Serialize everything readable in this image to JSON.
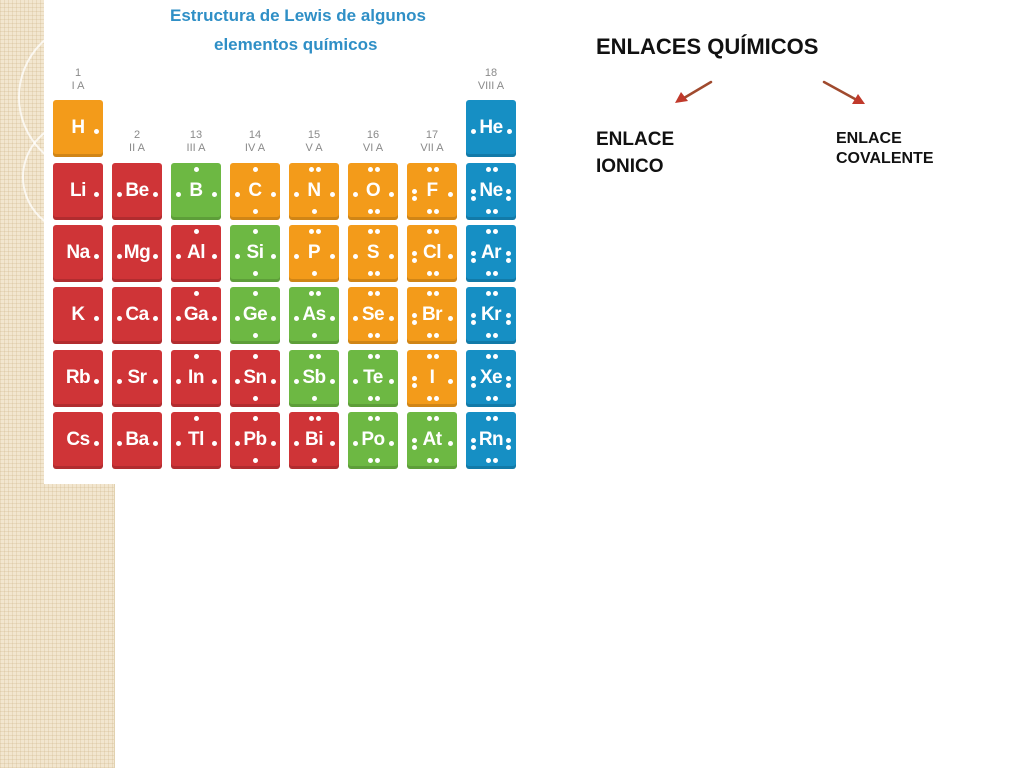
{
  "slide": {
    "title": "ENLACES QUÍMICOS",
    "branch_left": [
      "ENLACE",
      "IONICO"
    ],
    "branch_right": [
      "ENLACE",
      "COVALENTE"
    ],
    "arrow_color": "#c0392b"
  },
  "periodic_table": {
    "title_line_1": "Estructura de Lewis de algunos",
    "title_line_2": "elementos químicos",
    "colors": {
      "red": "#cf3437",
      "orange": "#f39b1a",
      "green": "#6db843",
      "blue": "#168fc4",
      "title": "#2f8fc6"
    },
    "groups": [
      {
        "number": "1",
        "roman": "I A",
        "col": 0
      },
      {
        "number": "2",
        "roman": "II A",
        "col": 1
      },
      {
        "number": "13",
        "roman": "III A",
        "col": 2
      },
      {
        "number": "14",
        "roman": "IV A",
        "col": 3
      },
      {
        "number": "15",
        "roman": "V A",
        "col": 4
      },
      {
        "number": "16",
        "roman": "VI A",
        "col": 5
      },
      {
        "number": "17",
        "roman": "VII A",
        "col": 6
      },
      {
        "number": "18",
        "roman": "VIII A",
        "col": 7
      }
    ],
    "elements": [
      {
        "symbol": "H",
        "col": 0,
        "row": 0,
        "color": "orange",
        "electrons": 1
      },
      {
        "symbol": "He",
        "col": 7,
        "row": 0,
        "color": "blue",
        "electrons": 2
      },
      {
        "symbol": "Li",
        "col": 0,
        "row": 1,
        "color": "red",
        "electrons": 1
      },
      {
        "symbol": "Be",
        "col": 1,
        "row": 1,
        "color": "red",
        "electrons": 2
      },
      {
        "symbol": "B",
        "col": 2,
        "row": 1,
        "color": "green",
        "electrons": 3
      },
      {
        "symbol": "C",
        "col": 3,
        "row": 1,
        "color": "orange",
        "electrons": 4
      },
      {
        "symbol": "N",
        "col": 4,
        "row": 1,
        "color": "orange",
        "electrons": 5
      },
      {
        "symbol": "O",
        "col": 5,
        "row": 1,
        "color": "orange",
        "electrons": 6
      },
      {
        "symbol": "F",
        "col": 6,
        "row": 1,
        "color": "orange",
        "electrons": 7
      },
      {
        "symbol": "Ne",
        "col": 7,
        "row": 1,
        "color": "blue",
        "electrons": 8
      },
      {
        "symbol": "Na",
        "col": 0,
        "row": 2,
        "color": "red",
        "electrons": 1
      },
      {
        "symbol": "Mg",
        "col": 1,
        "row": 2,
        "color": "red",
        "electrons": 2
      },
      {
        "symbol": "Al",
        "col": 2,
        "row": 2,
        "color": "red",
        "electrons": 3
      },
      {
        "symbol": "Si",
        "col": 3,
        "row": 2,
        "color": "green",
        "electrons": 4
      },
      {
        "symbol": "P",
        "col": 4,
        "row": 2,
        "color": "orange",
        "electrons": 5
      },
      {
        "symbol": "S",
        "col": 5,
        "row": 2,
        "color": "orange",
        "electrons": 6
      },
      {
        "symbol": "Cl",
        "col": 6,
        "row": 2,
        "color": "orange",
        "electrons": 7
      },
      {
        "symbol": "Ar",
        "col": 7,
        "row": 2,
        "color": "blue",
        "electrons": 8
      },
      {
        "symbol": "K",
        "col": 0,
        "row": 3,
        "color": "red",
        "electrons": 1
      },
      {
        "symbol": "Ca",
        "col": 1,
        "row": 3,
        "color": "red",
        "electrons": 2
      },
      {
        "symbol": "Ga",
        "col": 2,
        "row": 3,
        "color": "red",
        "electrons": 3
      },
      {
        "symbol": "Ge",
        "col": 3,
        "row": 3,
        "color": "green",
        "electrons": 4
      },
      {
        "symbol": "As",
        "col": 4,
        "row": 3,
        "color": "green",
        "electrons": 5
      },
      {
        "symbol": "Se",
        "col": 5,
        "row": 3,
        "color": "orange",
        "electrons": 6
      },
      {
        "symbol": "Br",
        "col": 6,
        "row": 3,
        "color": "orange",
        "electrons": 7
      },
      {
        "symbol": "Kr",
        "col": 7,
        "row": 3,
        "color": "blue",
        "electrons": 8
      },
      {
        "symbol": "Rb",
        "col": 0,
        "row": 4,
        "color": "red",
        "electrons": 1
      },
      {
        "symbol": "Sr",
        "col": 1,
        "row": 4,
        "color": "red",
        "electrons": 2
      },
      {
        "symbol": "In",
        "col": 2,
        "row": 4,
        "color": "red",
        "electrons": 3
      },
      {
        "symbol": "Sn",
        "col": 3,
        "row": 4,
        "color": "red",
        "electrons": 4
      },
      {
        "symbol": "Sb",
        "col": 4,
        "row": 4,
        "color": "green",
        "electrons": 5
      },
      {
        "symbol": "Te",
        "col": 5,
        "row": 4,
        "color": "green",
        "electrons": 6
      },
      {
        "symbol": "I",
        "col": 6,
        "row": 4,
        "color": "orange",
        "electrons": 7
      },
      {
        "symbol": "Xe",
        "col": 7,
        "row": 4,
        "color": "blue",
        "electrons": 8
      },
      {
        "symbol": "Cs",
        "col": 0,
        "row": 5,
        "color": "red",
        "electrons": 1
      },
      {
        "symbol": "Ba",
        "col": 1,
        "row": 5,
        "color": "red",
        "electrons": 2
      },
      {
        "symbol": "Tl",
        "col": 2,
        "row": 5,
        "color": "red",
        "electrons": 3
      },
      {
        "symbol": "Pb",
        "col": 3,
        "row": 5,
        "color": "red",
        "electrons": 4
      },
      {
        "symbol": "Bi",
        "col": 4,
        "row": 5,
        "color": "red",
        "electrons": 5
      },
      {
        "symbol": "Po",
        "col": 5,
        "row": 5,
        "color": "green",
        "electrons": 6
      },
      {
        "symbol": "At",
        "col": 6,
        "row": 5,
        "color": "green",
        "electrons": 7
      },
      {
        "symbol": "Rn",
        "col": 7,
        "row": 5,
        "color": "blue",
        "electrons": 8
      }
    ]
  }
}
